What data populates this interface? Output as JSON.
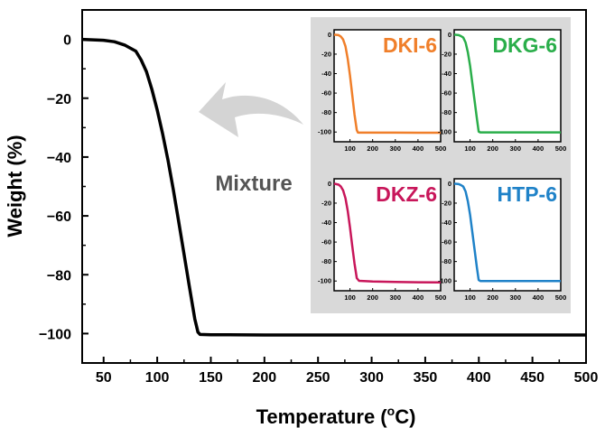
{
  "chart_data": [
    {
      "type": "line",
      "xlabel": "Temperature (",
      "xlabel_sup": "o",
      "xlabel_tail": "C)",
      "ylabel": "Weight (%)",
      "xlim": [
        30,
        500
      ],
      "ylim": [
        -110,
        10
      ],
      "xticks": [
        50,
        100,
        150,
        200,
        250,
        300,
        350,
        400,
        450,
        500
      ],
      "yticks": [
        0,
        -20,
        -40,
        -60,
        -80,
        -100
      ],
      "yticklabels": [
        "0",
        "−20",
        "−40",
        "−60",
        "−80",
        "−100"
      ],
      "series": [
        {
          "color": "#000000",
          "x": [
            30,
            50,
            60,
            70,
            80,
            85,
            90,
            95,
            100,
            105,
            110,
            115,
            120,
            125,
            130,
            135,
            138,
            140,
            150,
            200,
            300,
            400,
            500
          ],
          "y": [
            0,
            -0.3,
            -0.8,
            -2,
            -4,
            -7,
            -11,
            -17,
            -24,
            -32,
            -41,
            -51,
            -62,
            -73,
            -84,
            -95,
            -99.5,
            -100.3,
            -100.4,
            -100.5,
            -100.5,
            -100.5,
            -100.5
          ]
        }
      ],
      "annotation": "Mixture"
    },
    {
      "type": "line",
      "panel": "DKI-6",
      "color": "#f07f2a",
      "xlim": [
        30,
        500
      ],
      "ylim": [
        -110,
        5
      ],
      "xticks": [
        100,
        200,
        300,
        400,
        500
      ],
      "yticks": [
        0,
        -20,
        -40,
        -60,
        -80,
        -100
      ],
      "series": [
        {
          "name": "DKI-6",
          "color": "#f07f2a",
          "x": [
            30,
            50,
            60,
            70,
            80,
            90,
            100,
            110,
            120,
            130,
            135,
            140,
            200,
            300,
            400,
            500
          ],
          "y": [
            0,
            -0.5,
            -2,
            -5,
            -12,
            -25,
            -42,
            -62,
            -82,
            -98,
            -100.5,
            -100.6,
            -100.6,
            -100.6,
            -100.7,
            -100.7
          ]
        }
      ]
    },
    {
      "type": "line",
      "panel": "DKG-6",
      "color": "#2aae4a",
      "xlim": [
        30,
        500
      ],
      "ylim": [
        -110,
        5
      ],
      "xticks": [
        100,
        200,
        300,
        400,
        500
      ],
      "yticks": [
        0,
        -20,
        -40,
        -60,
        -80,
        -100
      ],
      "series": [
        {
          "name": "DKG-6",
          "color": "#2aae4a",
          "x": [
            30,
            50,
            60,
            70,
            80,
            90,
            100,
            110,
            120,
            130,
            138,
            145,
            200,
            300,
            400,
            500
          ],
          "y": [
            0,
            -0.5,
            -1.5,
            -3,
            -8,
            -18,
            -32,
            -50,
            -68,
            -86,
            -99.5,
            -100.4,
            -100.4,
            -100.4,
            -100.4,
            -100.4
          ]
        }
      ]
    },
    {
      "type": "line",
      "panel": "DKZ-6",
      "color": "#c8165a",
      "xlim": [
        30,
        500
      ],
      "ylim": [
        -110,
        5
      ],
      "xticks": [
        100,
        200,
        300,
        400,
        500
      ],
      "yticks": [
        0,
        -20,
        -40,
        -60,
        -80,
        -100
      ],
      "series": [
        {
          "name": "DKZ-6",
          "color": "#c8165a",
          "x": [
            30,
            50,
            60,
            70,
            80,
            90,
            100,
            110,
            120,
            130,
            140,
            200,
            300,
            400,
            500
          ],
          "y": [
            0,
            -1,
            -3,
            -7,
            -15,
            -28,
            -45,
            -64,
            -82,
            -97,
            -99.8,
            -100.5,
            -101,
            -101.3,
            -101.5
          ]
        }
      ]
    },
    {
      "type": "line",
      "panel": "HTP-6",
      "color": "#1f82c8",
      "xlim": [
        30,
        500
      ],
      "ylim": [
        -110,
        5
      ],
      "xticks": [
        100,
        200,
        300,
        400,
        500
      ],
      "yticks": [
        0,
        -20,
        -40,
        -60,
        -80,
        -100
      ],
      "series": [
        {
          "name": "HTP-6",
          "color": "#1f82c8",
          "x": [
            30,
            50,
            60,
            70,
            80,
            90,
            100,
            110,
            120,
            130,
            138,
            145,
            200,
            300,
            400,
            500
          ],
          "y": [
            0,
            -0.5,
            -1.5,
            -3,
            -8,
            -18,
            -32,
            -50,
            -68,
            -86,
            -99,
            -100,
            -100,
            -100,
            -100,
            -100
          ]
        }
      ]
    }
  ],
  "colors": {
    "inset_background": "#d9d9d9",
    "arrow": "#d4d4d4",
    "annotation_text": "#555555"
  }
}
